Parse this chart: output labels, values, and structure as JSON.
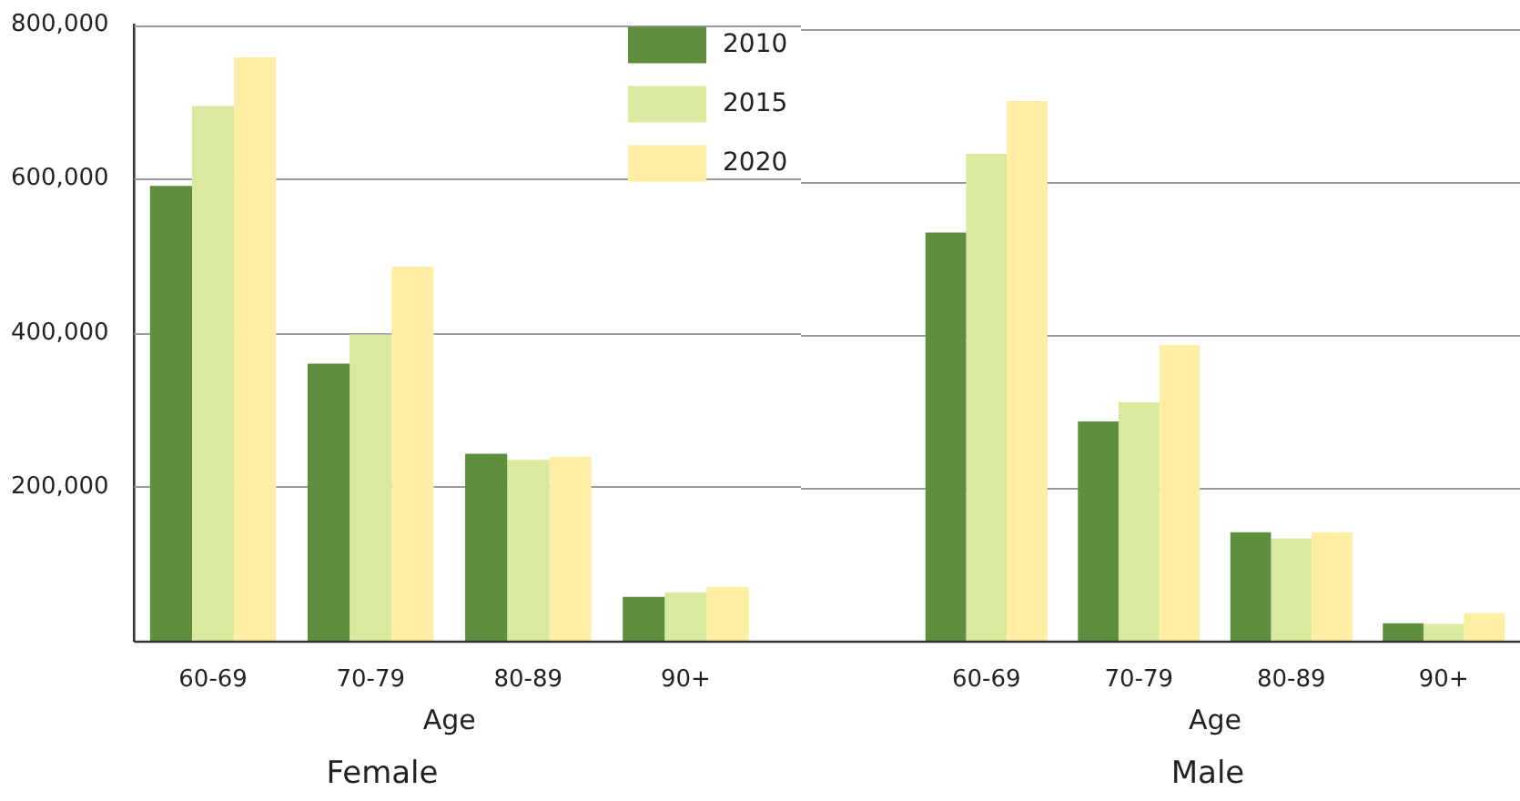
{
  "chart_data": [
    {
      "type": "bar",
      "title": "Female",
      "xlabel": "Age",
      "categories": [
        "60-69",
        "70-79",
        "80-89",
        "90+"
      ],
      "series": [
        {
          "name": "2010",
          "color": "#5e8f3e",
          "values": [
            591000,
            360000,
            243000,
            57000
          ]
        },
        {
          "name": "2015",
          "color": "#d9e99e",
          "values": [
            695000,
            398000,
            235000,
            63000
          ]
        },
        {
          "name": "2020",
          "color": "#feeea4",
          "values": [
            758000,
            486000,
            239000,
            70000
          ]
        }
      ],
      "ylim": [
        0,
        800000
      ],
      "yticks": [
        {
          "value": 200000,
          "label": "200,000"
        },
        {
          "value": 400000,
          "label": "400,000"
        },
        {
          "value": 600000,
          "label": "600,000"
        },
        {
          "value": 800000,
          "label": "800,000"
        }
      ],
      "grid": "y",
      "legend": "top right"
    },
    {
      "type": "bar",
      "title": "Male",
      "xlabel": "Age",
      "categories": [
        "60-69",
        "70-79",
        "80-89",
        "90+"
      ],
      "series": [
        {
          "color": "#5e8f3e",
          "values": [
            534000,
            287000,
            142000,
            23000
          ]
        },
        {
          "color": "#d9e99e",
          "values": [
            637000,
            312000,
            134000,
            22000
          ]
        },
        {
          "color": "#feeea4",
          "values": [
            706000,
            387000,
            142000,
            36000
          ]
        }
      ],
      "ylim": [
        0,
        800000
      ],
      "yticks": [
        {
          "value": 200000,
          "label": null
        },
        {
          "value": 400000,
          "label": null
        },
        {
          "value": 600000,
          "label": null
        },
        {
          "value": 800000,
          "label": null
        }
      ],
      "grid": "y",
      "tick_labels": "x"
    }
  ]
}
